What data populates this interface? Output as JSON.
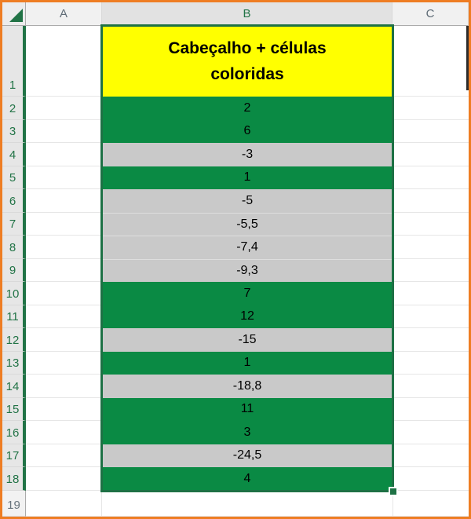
{
  "window": {
    "border_color": "#EE7D23"
  },
  "sheet": {
    "columns": [
      {
        "label": "A",
        "selected": false
      },
      {
        "label": "B",
        "selected": true
      },
      {
        "label": "C",
        "selected": false
      }
    ],
    "header_cell": {
      "cell": "B1",
      "line1": "Cabeçalho + células",
      "line2": "coloridas",
      "bg": "#FFFF00"
    },
    "data_rows": [
      {
        "row": "2",
        "value": "2",
        "fill": "green"
      },
      {
        "row": "3",
        "value": "6",
        "fill": "green"
      },
      {
        "row": "4",
        "value": "-3",
        "fill": "gray"
      },
      {
        "row": "5",
        "value": "1",
        "fill": "green"
      },
      {
        "row": "6",
        "value": "-5",
        "fill": "gray"
      },
      {
        "row": "7",
        "value": "-5,5",
        "fill": "gray"
      },
      {
        "row": "8",
        "value": "-7,4",
        "fill": "gray"
      },
      {
        "row": "9",
        "value": "-9,3",
        "fill": "gray"
      },
      {
        "row": "10",
        "value": "7",
        "fill": "green"
      },
      {
        "row": "11",
        "value": "12",
        "fill": "green"
      },
      {
        "row": "12",
        "value": "-15",
        "fill": "gray"
      },
      {
        "row": "13",
        "value": "1",
        "fill": "green"
      },
      {
        "row": "14",
        "value": "-18,8",
        "fill": "gray"
      },
      {
        "row": "15",
        "value": "11",
        "fill": "green"
      },
      {
        "row": "16",
        "value": "3",
        "fill": "green"
      },
      {
        "row": "17",
        "value": "-24,5",
        "fill": "gray"
      },
      {
        "row": "18",
        "value": "4",
        "fill": "green"
      }
    ],
    "empty_row": {
      "row": "19"
    },
    "row1_label": "1",
    "selection": {
      "range": "B1:B18",
      "border_color": "#1E7145"
    },
    "colors": {
      "green_fill": "#0A8A44",
      "gray_fill": "#C9C9C9",
      "selected_header_text": "#217346",
      "header_text": "#5E6B76",
      "yellow": "#FFFF00"
    }
  }
}
